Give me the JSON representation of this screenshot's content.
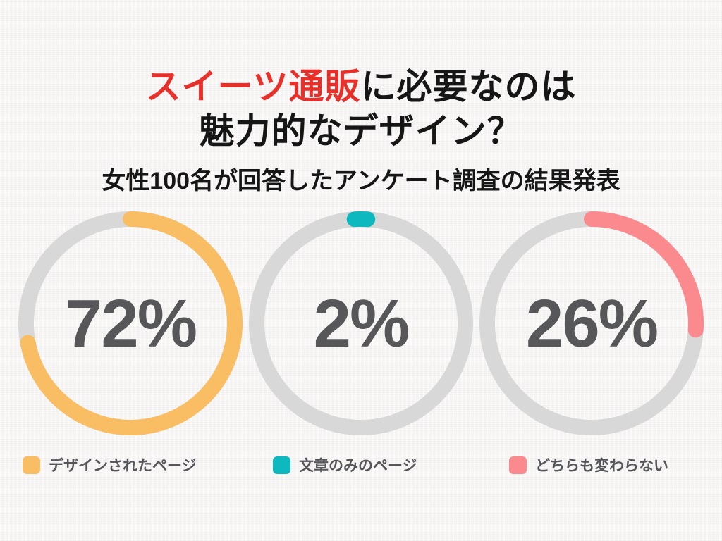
{
  "header": {
    "line1_highlight": "スイーツ通販",
    "line1_rest": "に必要なのは",
    "line2": "魅力的なデザイン？",
    "subtitle": "女性100名が回答したアンケート調査の結果発表",
    "highlight_color": "#e8302a",
    "text_color": "#161616"
  },
  "chart_data": {
    "type": "pie",
    "variant": "donut-progress-rings",
    "title": "スイーツ通販に必要なのは 魅力的なデザイン？",
    "subtitle": "女性100名が回答したアンケート調査の結果発表",
    "sample_size": 100,
    "categories": [
      "デザインされたページ",
      "文章のみのページ",
      "どちらも変わらない"
    ],
    "values": [
      72,
      2,
      26
    ],
    "display_values": [
      "72%",
      "2%",
      "26%"
    ],
    "unit": "%",
    "colors": [
      "#f9be64",
      "#0db9be",
      "#fa8a8d"
    ],
    "track_color": "#d8d8d8",
    "value_text_color": "#57575a",
    "arc_start": "top",
    "arc_direction": "clockwise",
    "legend_position": "bottom"
  }
}
